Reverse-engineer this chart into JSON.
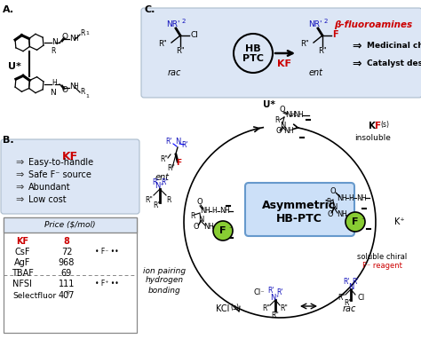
{
  "bg_color": "#ffffff",
  "panel_A_label": "A.",
  "panel_B_label": "B.",
  "panel_C_label": "C.",
  "kf_box_bg": "#dce6f5",
  "kf_box_border": "#aabbcc",
  "price_box_bg": "#ffffff",
  "price_box_border": "#888888",
  "price_header_bg": "#dce6f5",
  "reaction_box_bg": "#dce6f5",
  "reaction_box_border": "#aabbcc",
  "asymmetric_box_bg": "#cce0f8",
  "asymmetric_box_border": "#6699cc",
  "kf_color": "#cc0000",
  "blue_color": "#1111bb",
  "red_color": "#cc0000",
  "green_fill": "#88cc33",
  "black": "#000000",
  "kf_properties": [
    "Easy-to-handle",
    "Safe F⁻ source",
    "Abundant",
    "Low cost"
  ],
  "beta_fluoroamines_text": "β-fluoroamines",
  "medicinal_chemistry": "Medicinal chemistry",
  "catalyst_design": "Catalyst design",
  "asymmetric_label_1": "Asymmetric",
  "asymmetric_label_2": "HB-PTC"
}
